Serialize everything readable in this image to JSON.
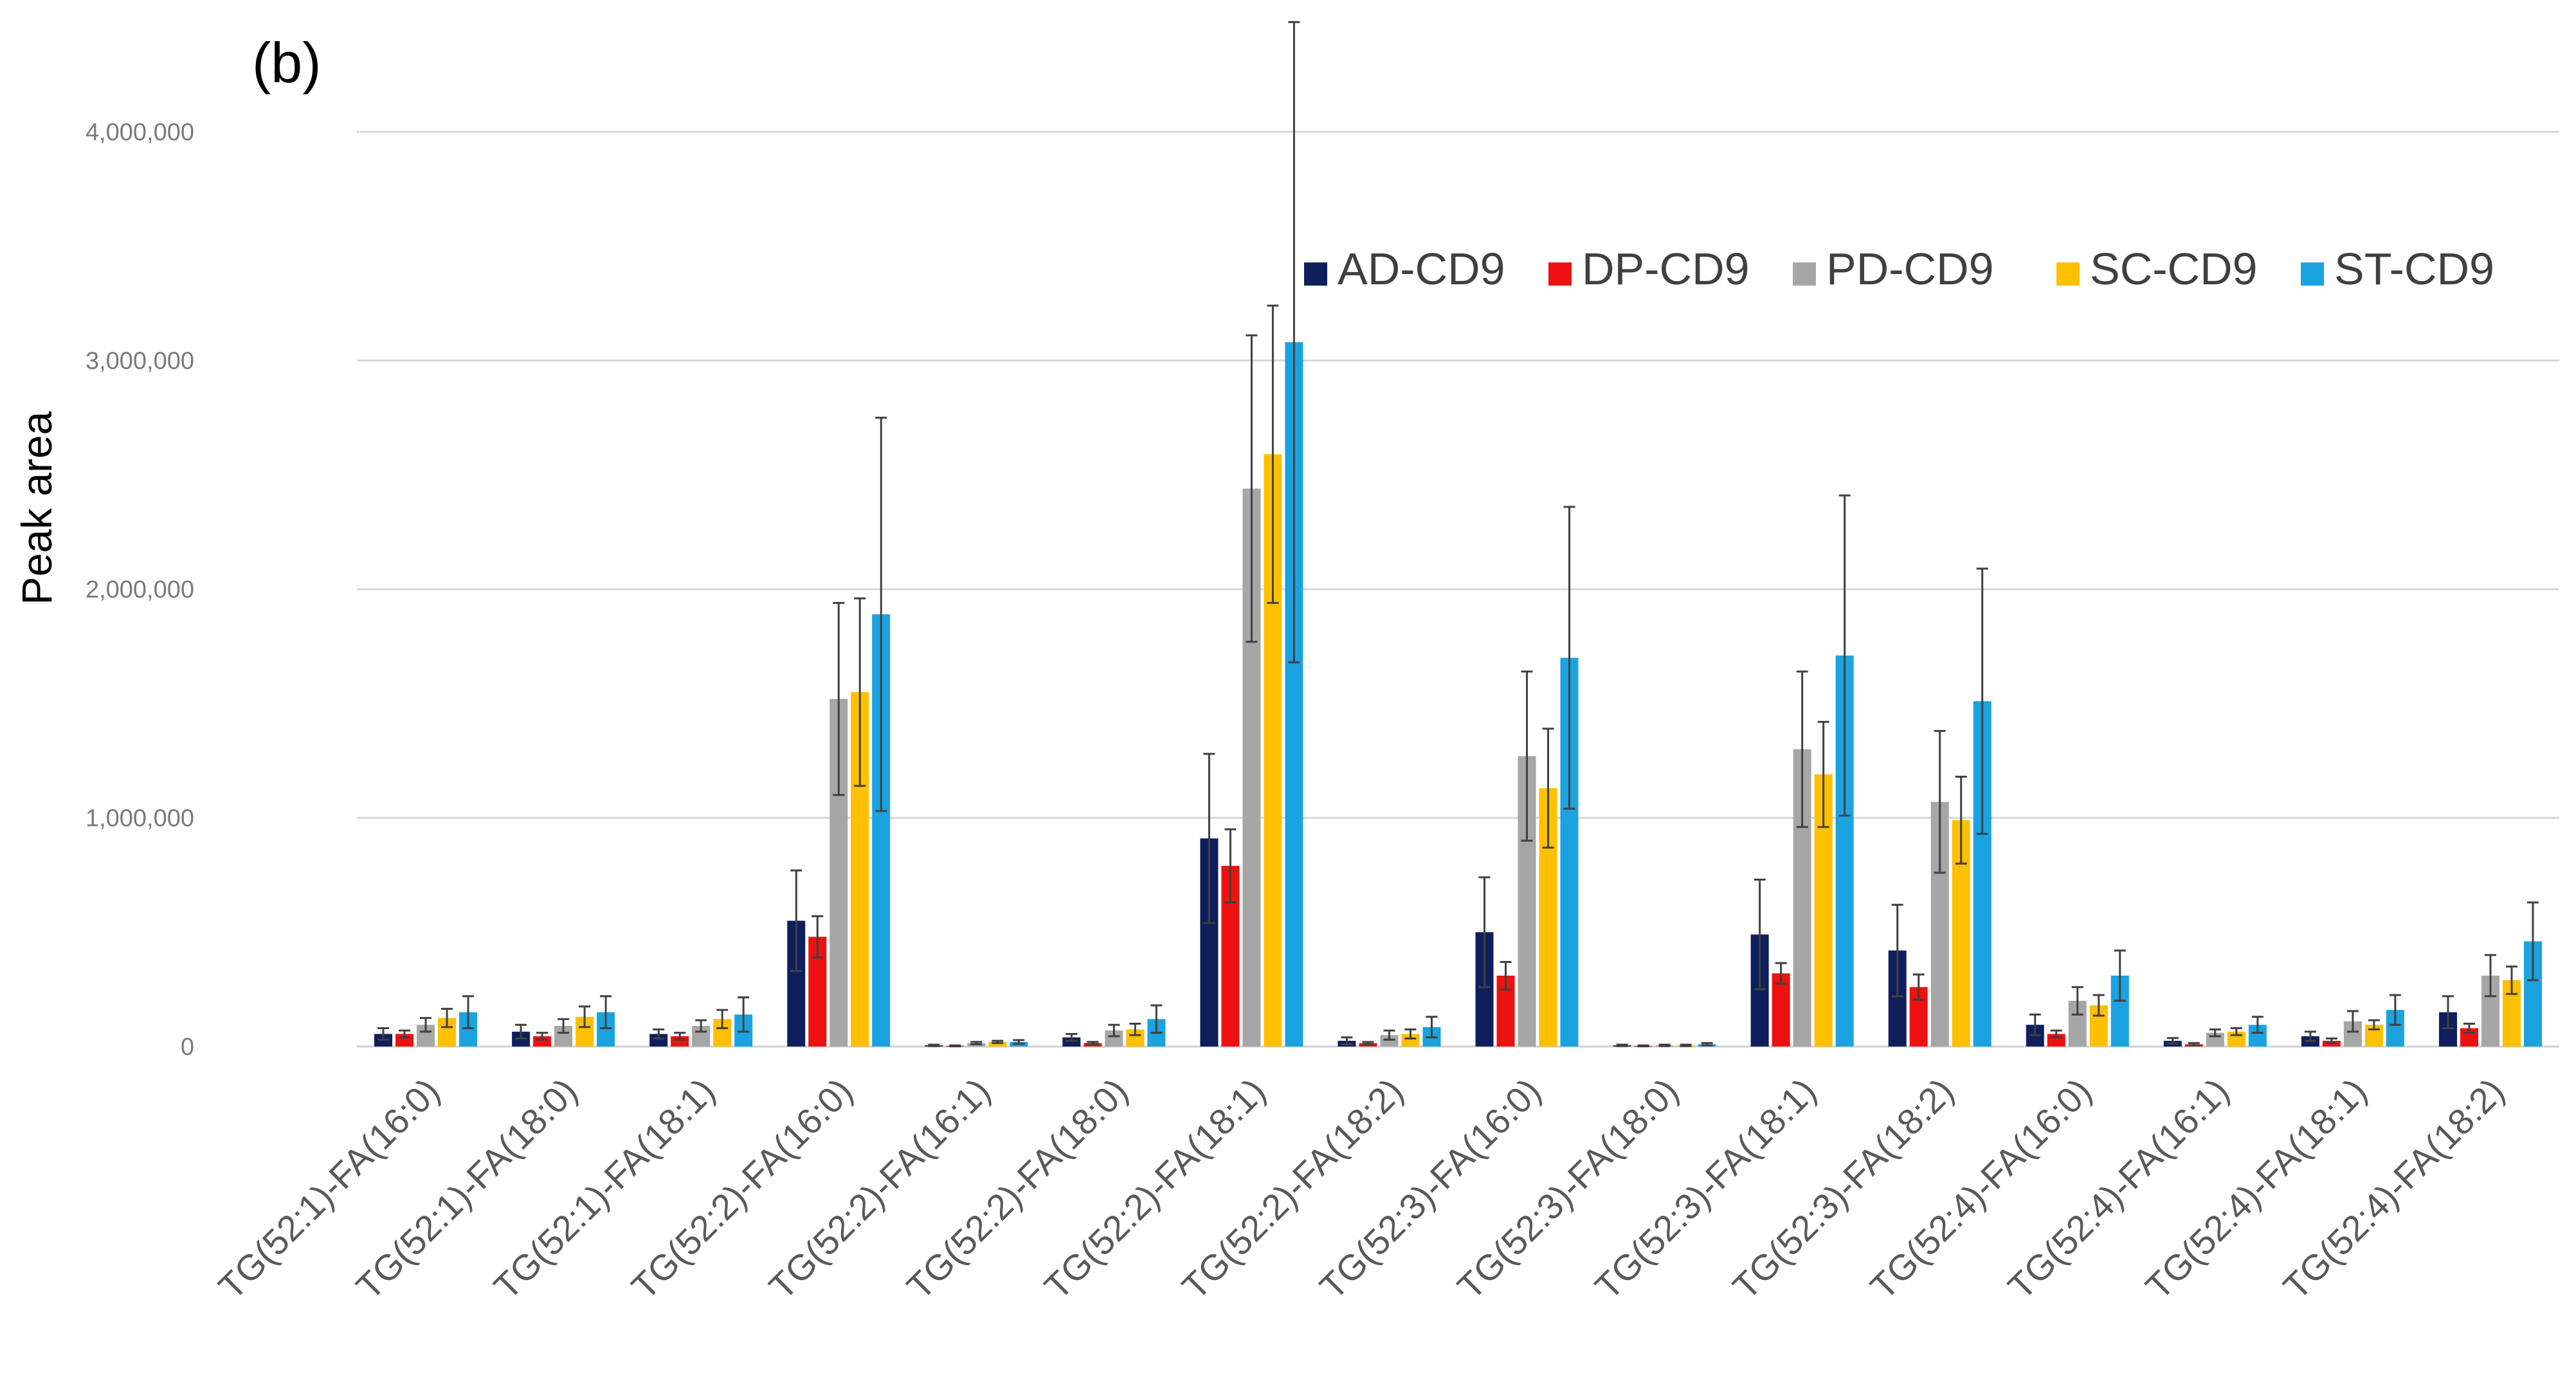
{
  "chart_data": {
    "type": "bar",
    "panel_label": "(b)",
    "title": "",
    "xlabel": "",
    "ylabel": "Peak area",
    "ylim": [
      0,
      4000000
    ],
    "yticks": [
      {
        "value": 0,
        "label": "0"
      },
      {
        "value": 1000000,
        "label": "1,000,000"
      },
      {
        "value": 2000000,
        "label": "2,000,000"
      },
      {
        "value": 3000000,
        "label": "3,000,000"
      },
      {
        "value": 4000000,
        "label": "4,000,000"
      }
    ],
    "grid": true,
    "legend_position": "top-right",
    "categories": [
      "TG(52:1)-FA(16:0)",
      "TG(52:1)-FA(18:0)",
      "TG(52:1)-FA(18:1)",
      "TG(52:2)-FA(16:0)",
      "TG(52:2)-FA(16:1)",
      "TG(52:2)-FA(18:0)",
      "TG(52:2)-FA(18:1)",
      "TG(52:2)-FA(18:2)",
      "TG(52:3)-FA(16:0)",
      "TG(52:3)-FA(18:0)",
      "TG(52:3)-FA(18:1)",
      "TG(52:3)-FA(18:2)",
      "TG(52:4)-FA(16:0)",
      "TG(52:4)-FA(16:1)",
      "TG(52:4)-FA(18:1)",
      "TG(52:4)-FA(18:2)"
    ],
    "series": [
      {
        "name": "AD-CD9",
        "color": "#0f1f5c",
        "values": [
          55000,
          65000,
          55000,
          550000,
          5000,
          40000,
          910000,
          25000,
          500000,
          5000,
          490000,
          420000,
          95000,
          25000,
          45000,
          150000
        ],
        "errors": [
          25000,
          30000,
          20000,
          220000,
          3000,
          15000,
          370000,
          15000,
          240000,
          3000,
          240000,
          200000,
          45000,
          12000,
          20000,
          70000
        ]
      },
      {
        "name": "DP-CD9",
        "color": "#ee1111",
        "values": [
          55000,
          45000,
          45000,
          480000,
          3000,
          15000,
          790000,
          15000,
          310000,
          3000,
          320000,
          260000,
          55000,
          10000,
          25000,
          80000
        ],
        "errors": [
          15000,
          15000,
          15000,
          90000,
          2000,
          5000,
          160000,
          5000,
          60000,
          2000,
          45000,
          55000,
          15000,
          5000,
          10000,
          20000
        ]
      },
      {
        "name": "PD-CD9",
        "color": "#a6a6a6",
        "values": [
          95000,
          90000,
          90000,
          1520000,
          15000,
          70000,
          2440000,
          50000,
          1270000,
          5000,
          1300000,
          1070000,
          200000,
          60000,
          110000,
          310000
        ],
        "errors": [
          30000,
          30000,
          25000,
          420000,
          5000,
          25000,
          670000,
          20000,
          370000,
          3000,
          340000,
          310000,
          60000,
          15000,
          45000,
          90000
        ]
      },
      {
        "name": "SC-CD9",
        "color": "#ffc000",
        "values": [
          125000,
          130000,
          120000,
          1550000,
          20000,
          75000,
          2590000,
          55000,
          1130000,
          5000,
          1190000,
          990000,
          180000,
          65000,
          95000,
          290000
        ],
        "errors": [
          40000,
          45000,
          40000,
          410000,
          5000,
          25000,
          650000,
          20000,
          260000,
          3000,
          230000,
          190000,
          45000,
          15000,
          20000,
          60000
        ]
      },
      {
        "name": "ST-CD9",
        "color": "#1aa3e0",
        "values": [
          150000,
          150000,
          140000,
          1890000,
          20000,
          120000,
          3080000,
          85000,
          1700000,
          10000,
          1710000,
          1510000,
          310000,
          95000,
          160000,
          460000
        ],
        "errors": [
          70000,
          70000,
          75000,
          860000,
          8000,
          60000,
          1400000,
          45000,
          660000,
          5000,
          700000,
          580000,
          110000,
          35000,
          65000,
          170000
        ]
      }
    ]
  }
}
